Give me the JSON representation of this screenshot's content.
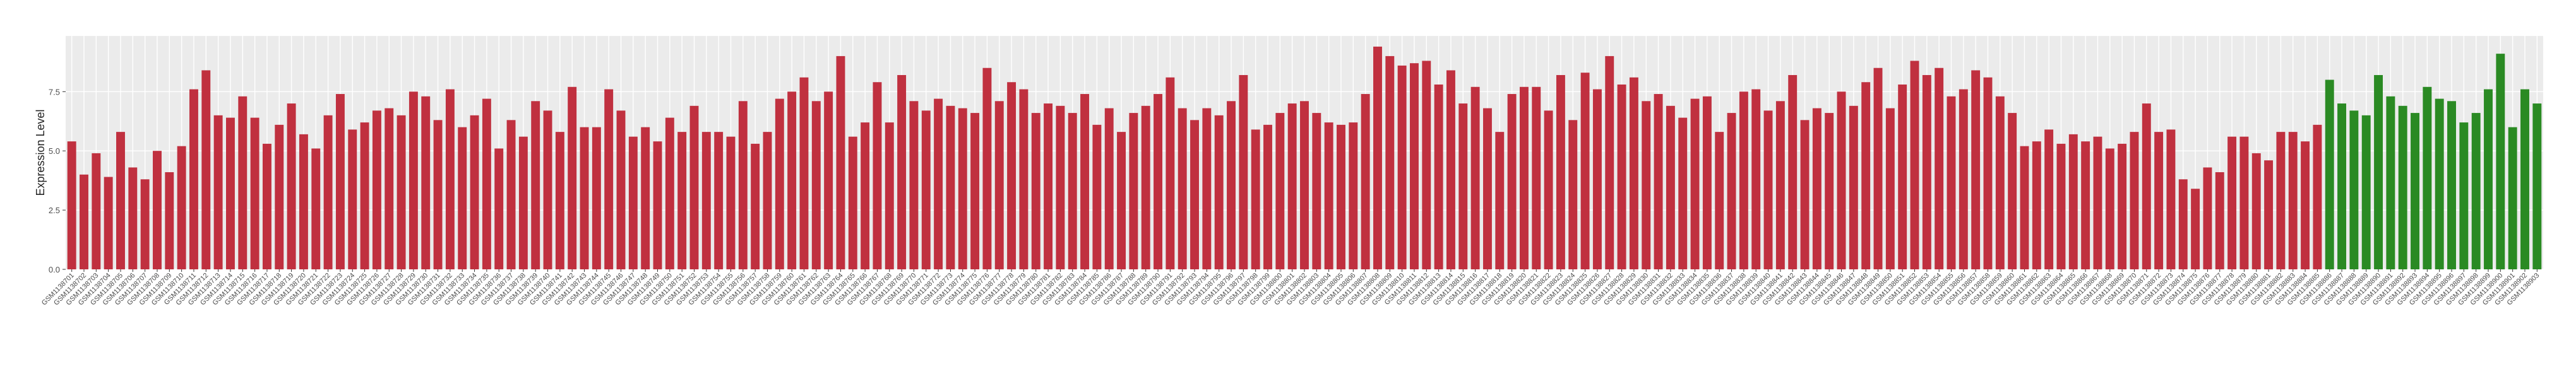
{
  "chart_data": {
    "type": "bar",
    "y_label": "Expression Level",
    "ylim": [
      0,
      9.85
    ],
    "yticks": [
      {
        "value": 0,
        "label": "0.0"
      },
      2.5,
      {
        "value": 5,
        "label": "5.0"
      },
      7.5
    ],
    "grid": true,
    "categories": [
      "GSM1138701",
      "GSM1138702",
      "GSM1138703",
      "GSM1138704",
      "GSM1138705",
      "GSM1138706",
      "GSM1138707",
      "GSM1138708",
      "GSM1138709",
      "GSM1138710",
      "GSM1138711",
      "GSM1138712",
      "GSM1138713",
      "GSM1138714",
      "GSM1138715",
      "GSM1138716",
      "GSM1138717",
      "GSM1138718",
      "GSM1138719",
      "GSM1138720",
      "GSM1138721",
      "GSM1138722",
      "GSM1138723",
      "GSM1138724",
      "GSM1138725",
      "GSM1138726",
      "GSM1138727",
      "GSM1138728",
      "GSM1138729",
      "GSM1138730",
      "GSM1138731",
      "GSM1138732",
      "GSM1138733",
      "GSM1138734",
      "GSM1138735",
      "GSM1138736",
      "GSM1138737",
      "GSM1138738",
      "GSM1138739",
      "GSM1138740",
      "GSM1138741",
      "GSM1138742",
      "GSM1138743",
      "GSM1138744",
      "GSM1138745",
      "GSM1138746",
      "GSM1138747",
      "GSM1138748",
      "GSM1138749",
      "GSM1138750",
      "GSM1138751",
      "GSM1138752",
      "GSM1138753",
      "GSM1138754",
      "GSM1138755",
      "GSM1138756",
      "GSM1138757",
      "GSM1138758",
      "GSM1138759",
      "GSM1138760",
      "GSM1138761",
      "GSM1138762",
      "GSM1138763",
      "GSM1138764",
      "GSM1138765",
      "GSM1138766",
      "GSM1138767",
      "GSM1138768",
      "GSM1138769",
      "GSM1138770",
      "GSM1138771",
      "GSM1138772",
      "GSM1138773",
      "GSM1138774",
      "GSM1138775",
      "GSM1138776",
      "GSM1138777",
      "GSM1138778",
      "GSM1138779",
      "GSM1138780",
      "GSM1138781",
      "GSM1138782",
      "GSM1138783",
      "GSM1138784",
      "GSM1138785",
      "GSM1138786",
      "GSM1138787",
      "GSM1138788",
      "GSM1138789",
      "GSM1138790",
      "GSM1138791",
      "GSM1138792",
      "GSM1138793",
      "GSM1138794",
      "GSM1138795",
      "GSM1138796",
      "GSM1138797",
      "GSM1138798",
      "GSM1138799",
      "GSM1138800",
      "GSM1138801",
      "GSM1138802",
      "GSM1138803",
      "GSM1138804",
      "GSM1138805",
      "GSM1138806",
      "GSM1138807",
      "GSM1138808",
      "GSM1138809",
      "GSM1138810",
      "GSM1138811",
      "GSM1138812",
      "GSM1138813",
      "GSM1138814",
      "GSM1138815",
      "GSM1138816",
      "GSM1138817",
      "GSM1138818",
      "GSM1138819",
      "GSM1138820",
      "GSM1138821",
      "GSM1138822",
      "GSM1138823",
      "GSM1138824",
      "GSM1138825",
      "GSM1138826",
      "GSM1138827",
      "GSM1138828",
      "GSM1138829",
      "GSM1138830",
      "GSM1138831",
      "GSM1138832",
      "GSM1138833",
      "GSM1138834",
      "GSM1138835",
      "GSM1138836",
      "GSM1138837",
      "GSM1138838",
      "GSM1138839",
      "GSM1138840",
      "GSM1138841",
      "GSM1138842",
      "GSM1138843",
      "GSM1138844",
      "GSM1138845",
      "GSM1138846",
      "GSM1138847",
      "GSM1138848",
      "GSM1138849",
      "GSM1138850",
      "GSM1138851",
      "GSM1138852",
      "GSM1138853",
      "GSM1138854",
      "GSM1138855",
      "GSM1138856",
      "GSM1138857",
      "GSM1138858",
      "GSM1138859",
      "GSM1138860",
      "GSM1138861",
      "GSM1138862",
      "GSM1138863",
      "GSM1138864",
      "GSM1138865",
      "GSM1138866",
      "GSM1138867",
      "GSM1138868",
      "GSM1138869",
      "GSM1138870",
      "GSM1138871",
      "GSM1138872",
      "GSM1138873",
      "GSM1138874",
      "GSM1138875",
      "GSM1138876",
      "GSM1138877",
      "GSM1138878",
      "GSM1138879",
      "GSM1138880",
      "GSM1138881",
      "GSM1138882",
      "GSM1138883",
      "GSM1138884",
      "GSM1138885",
      "GSM1138886",
      "GSM1138887",
      "GSM1138888",
      "GSM1138889",
      "GSM1138890",
      "GSM1138891",
      "GSM1138892",
      "GSM1138893",
      "GSM1138894",
      "GSM1138895",
      "GSM1138896",
      "GSM1138897",
      "GSM1138898",
      "GSM1138899",
      "GSM1138900",
      "GSM1138901",
      "GSM1138902",
      "GSM1138903"
    ],
    "values": [
      5.4,
      4.0,
      4.9,
      3.9,
      5.8,
      4.3,
      3.8,
      5.0,
      4.1,
      5.2,
      7.6,
      8.4,
      6.5,
      6.4,
      7.3,
      6.4,
      5.3,
      6.1,
      7.0,
      5.7,
      5.1,
      6.5,
      7.4,
      5.9,
      6.2,
      6.7,
      6.8,
      6.5,
      7.5,
      7.3,
      6.3,
      7.6,
      6.0,
      6.5,
      7.2,
      5.1,
      6.3,
      5.6,
      7.1,
      6.7,
      5.8,
      7.7,
      6.0,
      6.0,
      7.6,
      6.7,
      5.6,
      6.0,
      5.4,
      6.4,
      5.8,
      6.9,
      5.8,
      5.8,
      5.6,
      7.1,
      5.3,
      5.8,
      7.2,
      7.5,
      8.1,
      7.1,
      7.5,
      9.0,
      5.6,
      6.2,
      7.9,
      6.2,
      8.2,
      7.1,
      6.7,
      7.2,
      6.9,
      6.8,
      6.6,
      8.5,
      7.1,
      7.9,
      7.6,
      6.6,
      7.0,
      6.9,
      6.6,
      7.4,
      6.1,
      6.8,
      5.8,
      6.6,
      6.9,
      7.4,
      8.1,
      6.8,
      6.3,
      6.8,
      6.5,
      7.1,
      8.2,
      5.9,
      6.1,
      6.6,
      7.0,
      7.1,
      6.6,
      6.2,
      6.1,
      6.2,
      7.4,
      9.4,
      9.0,
      8.6,
      8.7,
      8.8,
      7.8,
      8.4,
      7.0,
      7.7,
      6.8,
      5.8,
      7.4,
      7.7,
      7.7,
      6.7,
      8.2,
      6.3,
      8.3,
      7.6,
      9.0,
      7.8,
      8.1,
      7.1,
      7.4,
      6.9,
      6.4,
      7.2,
      7.3,
      5.8,
      6.6,
      7.5,
      7.6,
      6.7,
      7.1,
      8.2,
      6.3,
      6.8,
      6.6,
      7.5,
      6.9,
      7.9,
      8.5,
      6.8,
      7.8,
      8.8,
      8.2,
      8.5,
      7.3,
      7.6,
      8.4,
      8.1,
      7.3,
      6.6,
      5.2,
      5.4,
      5.9,
      5.3,
      5.7,
      5.4,
      5.6,
      5.1,
      5.3,
      5.8,
      7.0,
      5.8,
      5.9,
      3.8,
      3.4,
      4.3,
      4.1,
      5.6,
      5.6,
      4.9,
      4.6,
      5.8,
      5.8,
      5.4,
      6.1,
      8.0,
      7.0,
      6.7,
      6.5,
      8.2,
      7.3,
      6.9,
      6.6,
      7.7,
      7.2,
      7.1,
      6.2,
      6.6,
      7.6,
      9.1,
      6.0,
      7.6,
      7.0
    ],
    "colors": [
      "#c0303f",
      "#c0303f",
      "#c0303f",
      "#c0303f",
      "#c0303f",
      "#c0303f",
      "#c0303f",
      "#c0303f",
      "#c0303f",
      "#c0303f",
      "#c0303f",
      "#c0303f",
      "#c0303f",
      "#c0303f",
      "#c0303f",
      "#c0303f",
      "#c0303f",
      "#c0303f",
      "#c0303f",
      "#c0303f",
      "#c0303f",
      "#c0303f",
      "#c0303f",
      "#c0303f",
      "#c0303f",
      "#c0303f",
      "#c0303f",
      "#c0303f",
      "#c0303f",
      "#c0303f",
      "#c0303f",
      "#c0303f",
      "#c0303f",
      "#c0303f",
      "#c0303f",
      "#c0303f",
      "#c0303f",
      "#c0303f",
      "#c0303f",
      "#c0303f",
      "#c0303f",
      "#c0303f",
      "#c0303f",
      "#c0303f",
      "#c0303f",
      "#c0303f",
      "#c0303f",
      "#c0303f",
      "#c0303f",
      "#c0303f",
      "#c0303f",
      "#c0303f",
      "#c0303f",
      "#c0303f",
      "#c0303f",
      "#c0303f",
      "#c0303f",
      "#c0303f",
      "#c0303f",
      "#c0303f",
      "#c0303f",
      "#c0303f",
      "#c0303f",
      "#c0303f",
      "#c0303f",
      "#c0303f",
      "#c0303f",
      "#c0303f",
      "#c0303f",
      "#c0303f",
      "#c0303f",
      "#c0303f",
      "#c0303f",
      "#c0303f",
      "#c0303f",
      "#c0303f",
      "#c0303f",
      "#c0303f",
      "#c0303f",
      "#c0303f",
      "#c0303f",
      "#c0303f",
      "#c0303f",
      "#c0303f",
      "#c0303f",
      "#c0303f",
      "#c0303f",
      "#c0303f",
      "#c0303f",
      "#c0303f",
      "#c0303f",
      "#c0303f",
      "#c0303f",
      "#c0303f",
      "#c0303f",
      "#c0303f",
      "#c0303f",
      "#c0303f",
      "#c0303f",
      "#c0303f",
      "#c0303f",
      "#c0303f",
      "#c0303f",
      "#c0303f",
      "#c0303f",
      "#c0303f",
      "#c0303f",
      "#c0303f",
      "#c0303f",
      "#c0303f",
      "#c0303f",
      "#c0303f",
      "#c0303f",
      "#c0303f",
      "#c0303f",
      "#c0303f",
      "#c0303f",
      "#c0303f",
      "#c0303f",
      "#c0303f",
      "#c0303f",
      "#c0303f",
      "#c0303f",
      "#c0303f",
      "#c0303f",
      "#c0303f",
      "#c0303f",
      "#c0303f",
      "#c0303f",
      "#c0303f",
      "#c0303f",
      "#c0303f",
      "#c0303f",
      "#c0303f",
      "#c0303f",
      "#c0303f",
      "#c0303f",
      "#c0303f",
      "#c0303f",
      "#c0303f",
      "#c0303f",
      "#c0303f",
      "#c0303f",
      "#c0303f",
      "#c0303f",
      "#c0303f",
      "#c0303f",
      "#c0303f",
      "#c0303f",
      "#c0303f",
      "#c0303f",
      "#c0303f",
      "#c0303f",
      "#c0303f",
      "#c0303f",
      "#c0303f",
      "#c0303f",
      "#c0303f",
      "#c0303f",
      "#c0303f",
      "#c0303f",
      "#c0303f",
      "#c0303f",
      "#c0303f",
      "#c0303f",
      "#c0303f",
      "#c0303f",
      "#c0303f",
      "#c0303f",
      "#c0303f",
      "#c0303f",
      "#c0303f",
      "#c0303f",
      "#c0303f",
      "#c0303f",
      "#c0303f",
      "#c0303f",
      "#c0303f",
      "#c0303f",
      "#c0303f",
      "#c0303f",
      "#c0303f",
      "#c0303f",
      "#c0303f",
      "#c0303f",
      "#2a8a23",
      "#2a8a23",
      "#2a8a23",
      "#2a8a23",
      "#2a8a23",
      "#2a8a23",
      "#2a8a23",
      "#2a8a23",
      "#2a8a23",
      "#2a8a23",
      "#2a8a23",
      "#2a8a23",
      "#2a8a23",
      "#2a8a23",
      "#2a8a23",
      "#2a8a23",
      "#2a8a23",
      "#2a8a23",
      "#2a8a23",
      "#2a8a23"
    ]
  }
}
